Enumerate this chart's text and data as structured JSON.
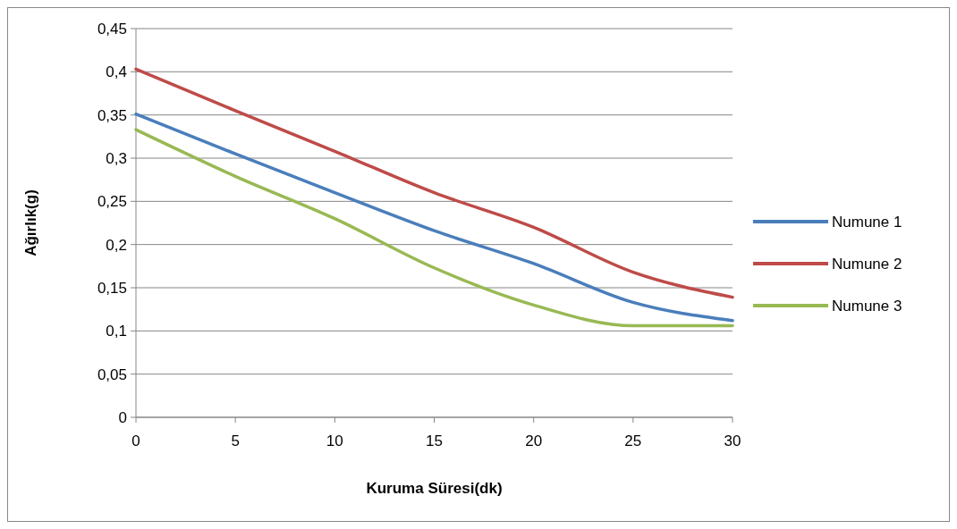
{
  "chart_data": {
    "type": "line",
    "xlabel": "Kuruma Süresi(dk)",
    "ylabel": "Ağırlık(g)",
    "x": [
      0,
      5,
      10,
      15,
      20,
      25,
      30
    ],
    "series": [
      {
        "name": "Numune 1",
        "color": "#4a7ebb",
        "values": [
          0.351,
          0.305,
          0.26,
          0.216,
          0.178,
          0.133,
          0.112
        ]
      },
      {
        "name": "Numune 2",
        "color": "#be4b48",
        "values": [
          0.403,
          0.355,
          0.308,
          0.26,
          0.22,
          0.168,
          0.139
        ]
      },
      {
        "name": "Numune 3",
        "color": "#98b954",
        "values": [
          0.333,
          0.279,
          0.23,
          0.173,
          0.13,
          0.106,
          0.106
        ]
      }
    ],
    "xlim": [
      0,
      30
    ],
    "xticks": [
      0,
      5,
      10,
      15,
      20,
      25,
      30
    ],
    "ylim": [
      0,
      0.45
    ],
    "yticks": [
      {
        "value": 0,
        "label": "0"
      },
      {
        "value": 0.05,
        "label": "0,05"
      },
      {
        "value": 0.1,
        "label": "0,1"
      },
      {
        "value": 0.15,
        "label": "0,15"
      },
      {
        "value": 0.2,
        "label": "0,2"
      },
      {
        "value": 0.25,
        "label": "0,25"
      },
      {
        "value": 0.3,
        "label": "0,3"
      },
      {
        "value": 0.35,
        "label": "0,35"
      },
      {
        "value": 0.4,
        "label": "0,4"
      },
      {
        "value": 0.45,
        "label": "0,45"
      }
    ],
    "grid": "y",
    "legend": "right",
    "marker": "none",
    "line_style": "solid"
  }
}
